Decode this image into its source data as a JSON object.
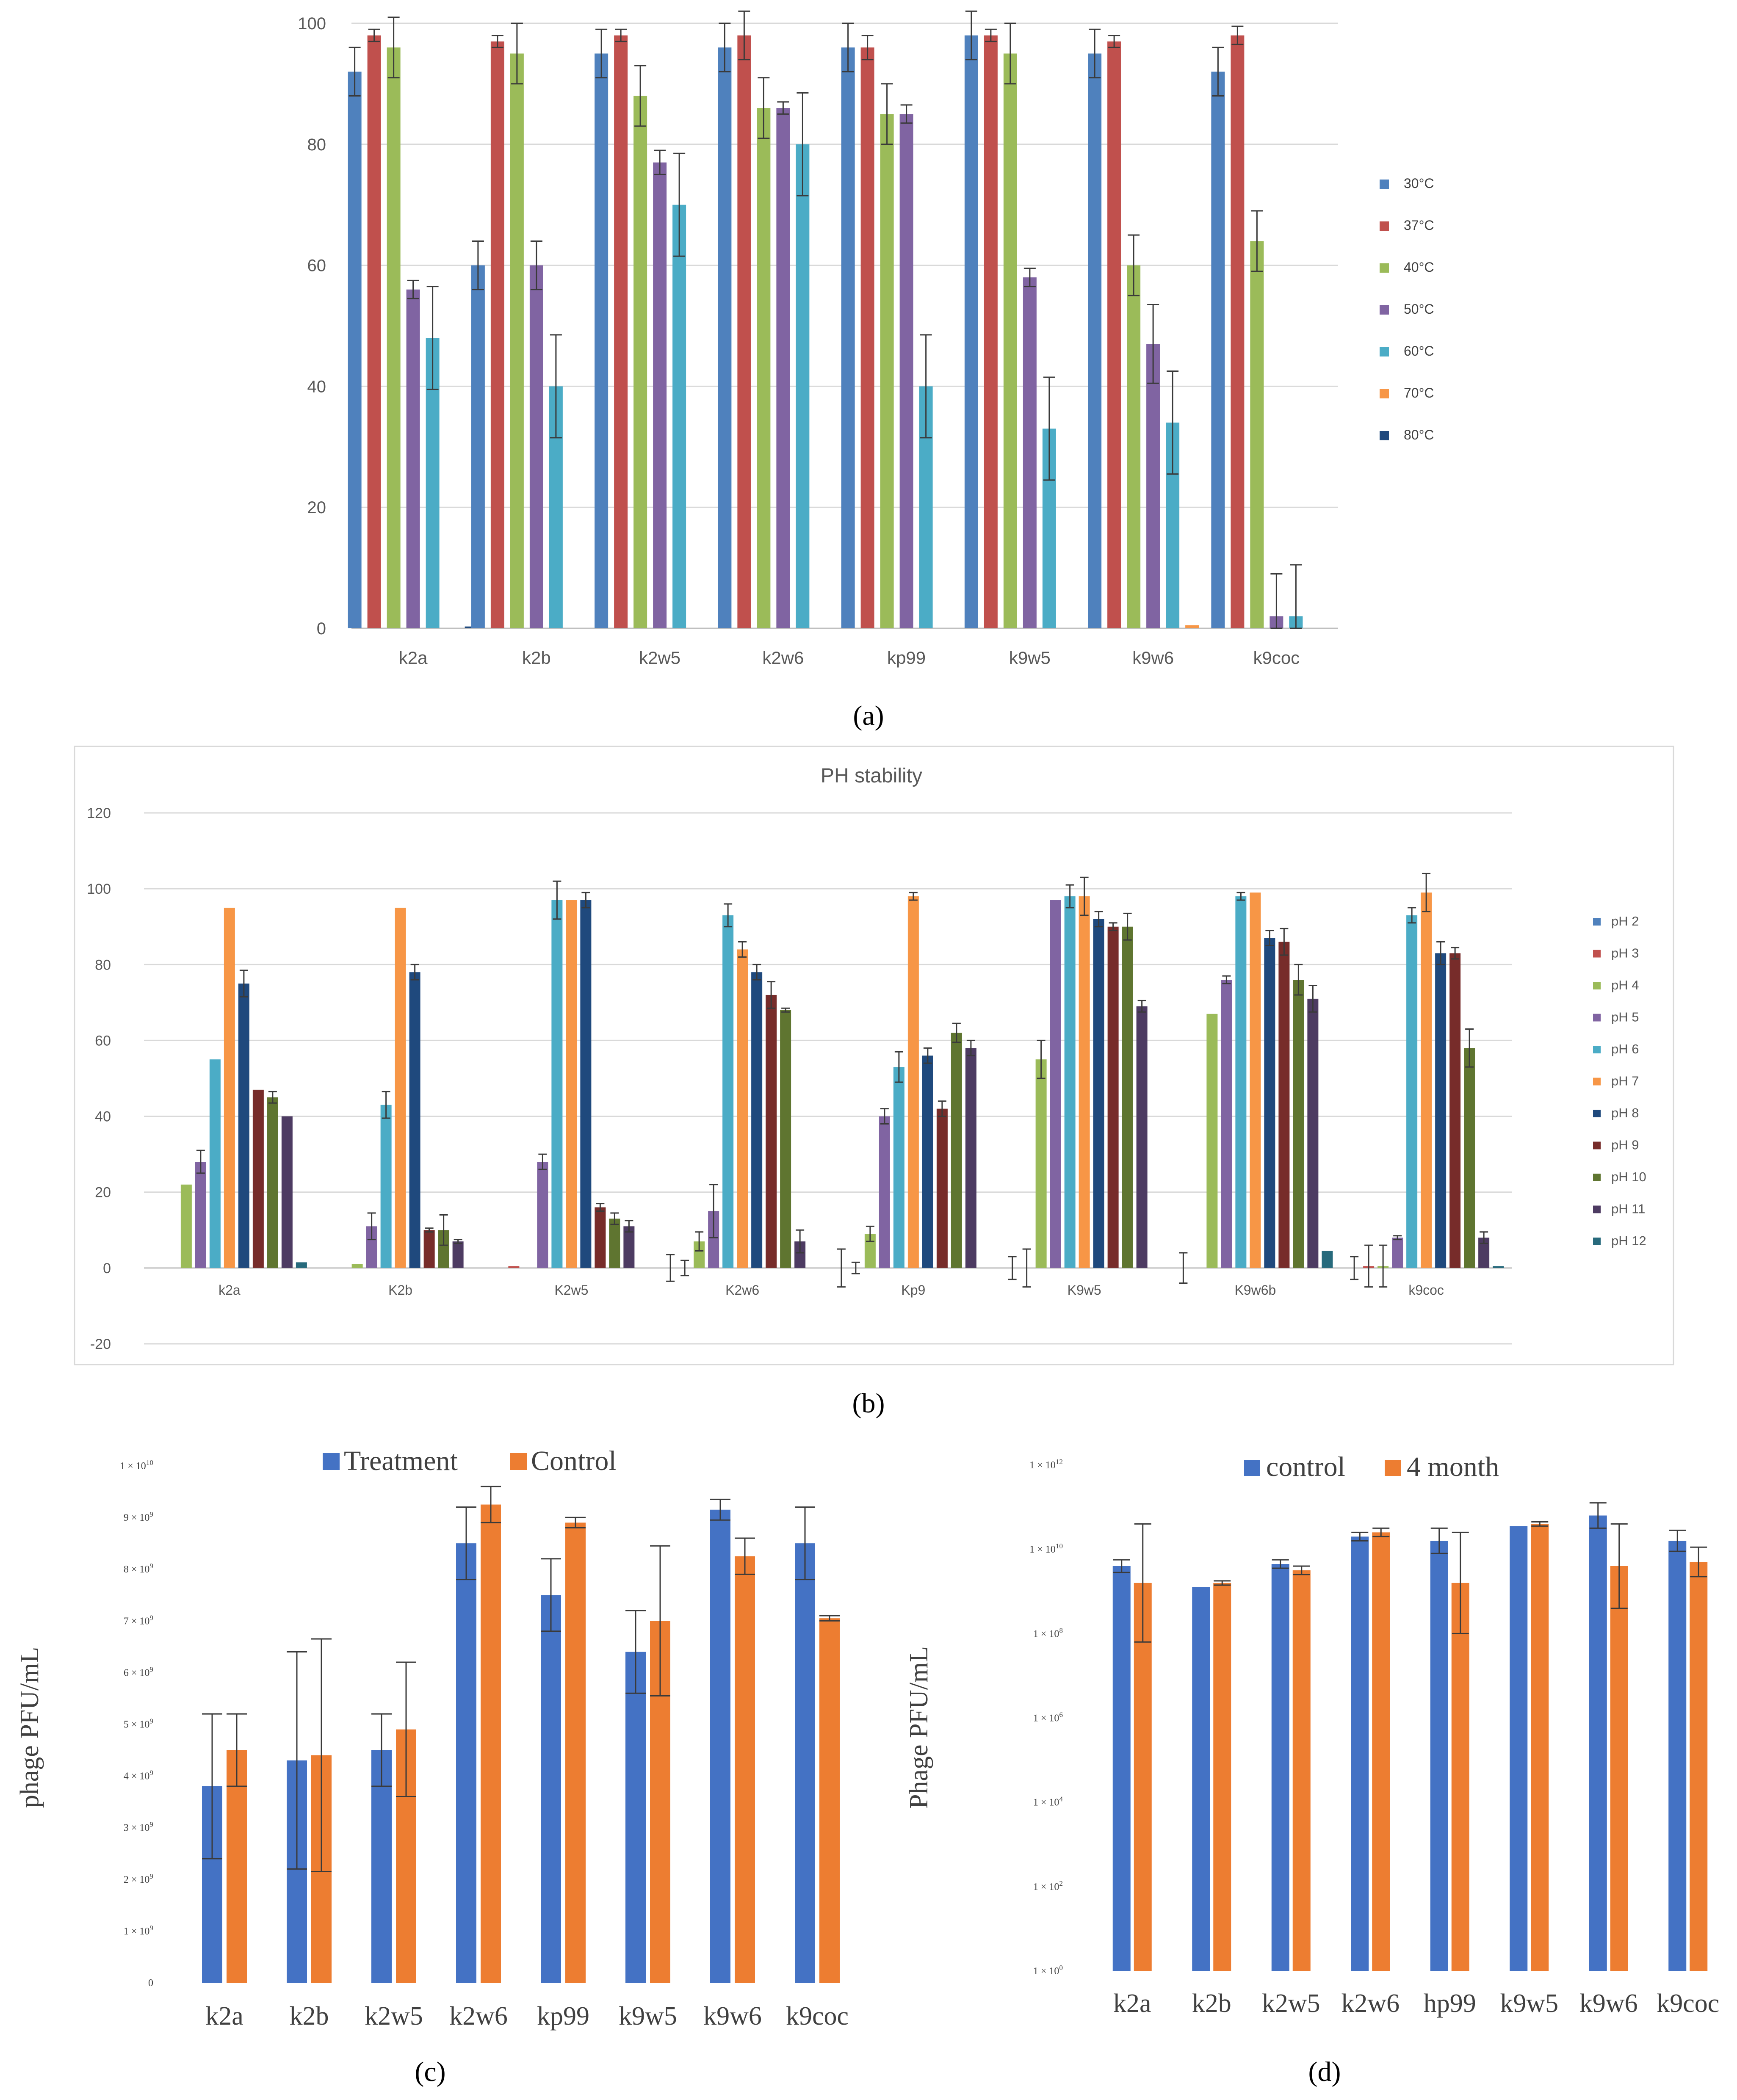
{
  "colors": {
    "temp": [
      "#4F81BD",
      "#C0504D",
      "#9BBB59",
      "#8064A2",
      "#4BACC6",
      "#F79646",
      "#1F497D"
    ],
    "ph": [
      "#4F81BD",
      "#C0504D",
      "#9BBB59",
      "#8064A2",
      "#4BACC6",
      "#F79646",
      "#1F497D",
      "#772C2A",
      "#5F7530",
      "#4D3B62",
      "#276A7C"
    ],
    "treatment": "#4472C4",
    "control": "#ED7D31"
  },
  "panel_labels": {
    "a": "(a)",
    "b": "(b)",
    "c": "(c)",
    "d": "(d)"
  },
  "chart_data": [
    {
      "id": "a",
      "type": "bar",
      "title": "",
      "xlabel": "",
      "ylabel": "",
      "ylim": [
        0,
        100
      ],
      "yticks": [
        "0",
        "20",
        "40",
        "60",
        "80",
        "100"
      ],
      "legend_position": "right",
      "categories": [
        "k2a",
        "k2b",
        "k2w5",
        "k2w6",
        "kp99",
        "k9w5",
        "k9w6",
        "k9coc"
      ],
      "series": [
        {
          "name": "30°C",
          "values": [
            92,
            60,
            95,
            96,
            96,
            98,
            95,
            92
          ],
          "errors": [
            4,
            4,
            4,
            4,
            4,
            4,
            4,
            4
          ]
        },
        {
          "name": "37°C",
          "values": [
            98,
            97,
            98,
            98,
            96,
            98,
            97,
            98
          ],
          "errors": [
            1,
            1,
            1,
            4,
            2,
            1,
            1,
            1.5
          ]
        },
        {
          "name": "40°C",
          "values": [
            96,
            95,
            88,
            86,
            85,
            95,
            60,
            64
          ],
          "errors": [
            5,
            5,
            5,
            5,
            5,
            5,
            5,
            5
          ]
        },
        {
          "name": "50°C",
          "values": [
            56,
            60,
            77,
            86,
            85,
            58,
            47,
            2
          ],
          "errors": [
            1.5,
            4,
            2,
            1,
            1.5,
            1.5,
            6.5,
            7
          ]
        },
        {
          "name": "60°C",
          "values": [
            48,
            40,
            70,
            80,
            40,
            33,
            34,
            2
          ],
          "errors": [
            8.5,
            8.5,
            8.5,
            8.5,
            8.5,
            8.5,
            8.5,
            8.5
          ]
        },
        {
          "name": "70°C",
          "values": [
            0,
            0,
            0,
            0,
            0,
            0,
            0.5,
            0
          ],
          "errors": [
            0,
            0,
            0,
            0,
            0,
            0,
            0,
            0
          ]
        },
        {
          "name": "80°C",
          "values": [
            0.3,
            0,
            0,
            0,
            0,
            0,
            0,
            0
          ],
          "errors": [
            0,
            0,
            0,
            0,
            0,
            0,
            0,
            0
          ]
        }
      ]
    },
    {
      "id": "b",
      "type": "bar",
      "title": "PH stability",
      "xlabel": "",
      "ylabel": "",
      "ylim": [
        -20,
        120
      ],
      "yticks": [
        "-20",
        "0",
        "20",
        "40",
        "60",
        "80",
        "100",
        "120"
      ],
      "legend_position": "right",
      "categories": [
        "k2a",
        "K2b",
        "K2w5",
        "K2w6",
        "Kp9",
        "K9w5",
        "K9w6b",
        "k9coc"
      ],
      "series": [
        {
          "name": "pH 2",
          "values": [
            0,
            0,
            0,
            0,
            0,
            0,
            0,
            0
          ],
          "errors": [
            0,
            0,
            0,
            3.5,
            5,
            3,
            4,
            3
          ]
        },
        {
          "name": "pH 3",
          "values": [
            0,
            0,
            0.5,
            0,
            0,
            0,
            0,
            0.5
          ],
          "errors": [
            0,
            0,
            0,
            2,
            1.5,
            5,
            0,
            5.5
          ]
        },
        {
          "name": "pH 4",
          "values": [
            22,
            1,
            0,
            7,
            9,
            55,
            67,
            0.5
          ],
          "errors": [
            0,
            0,
            0,
            2.5,
            2,
            5,
            0,
            5.5
          ]
        },
        {
          "name": "pH 5",
          "values": [
            28,
            11,
            28,
            15,
            40,
            97,
            76,
            8
          ],
          "errors": [
            3,
            3.5,
            2,
            7,
            2,
            0,
            1,
            0.5
          ]
        },
        {
          "name": "pH 6",
          "values": [
            55,
            43,
            97,
            93,
            53,
            98,
            98,
            93
          ],
          "errors": [
            0,
            3.5,
            5,
            3,
            4,
            3,
            1,
            2
          ]
        },
        {
          "name": "pH 7",
          "values": [
            95,
            95,
            97,
            84,
            98,
            98,
            99,
            99
          ],
          "errors": [
            0,
            0,
            0,
            2,
            1,
            5,
            0,
            5
          ]
        },
        {
          "name": "pH 8",
          "values": [
            75,
            78,
            97,
            78,
            56,
            92,
            87,
            83
          ],
          "errors": [
            3.5,
            2,
            2,
            2,
            2,
            2,
            2,
            3
          ]
        },
        {
          "name": "pH 9",
          "values": [
            47,
            10,
            16,
            72,
            42,
            90,
            86,
            83
          ],
          "errors": [
            0,
            0.5,
            1,
            3.5,
            2,
            1,
            3.5,
            1.5
          ]
        },
        {
          "name": "pH 10",
          "values": [
            45,
            10,
            13,
            68,
            62,
            90,
            76,
            58
          ],
          "errors": [
            1.5,
            4,
            1.5,
            0.5,
            2.5,
            3.5,
            4,
            5
          ]
        },
        {
          "name": "pH 11",
          "values": [
            40,
            7,
            11,
            7,
            58,
            69,
            71,
            8
          ],
          "errors": [
            0,
            0.5,
            1.5,
            3,
            2,
            1.5,
            3.5,
            1.5
          ]
        },
        {
          "name": "pH 12",
          "values": [
            1.5,
            0,
            0,
            0,
            0,
            0,
            4.5,
            0.5
          ],
          "errors": [
            0,
            0,
            0,
            0,
            0,
            0,
            0,
            0
          ]
        }
      ]
    },
    {
      "id": "c",
      "type": "bar",
      "title": "",
      "xlabel": "",
      "ylabel": "phage PFU/mL",
      "ylim": [
        0,
        10
      ],
      "value_unit": "x 10^9 PFU/mL",
      "yticks": [
        "0",
        "1 × 10^9",
        "2 × 10^9",
        "3 × 10^9",
        "4 × 10^9",
        "5 × 10^9",
        "6 × 10^9",
        "7 × 10^9",
        "8 × 10^9",
        "9 × 10^9",
        "1 × 10^10"
      ],
      "legend_position": "top",
      "categories": [
        "k2a",
        "k2b",
        "k2w5",
        "k2w6",
        "kp99",
        "k9w5",
        "k9w6",
        "k9coc"
      ],
      "series": [
        {
          "name": "Treatment",
          "values": [
            3.8,
            4.3,
            4.5,
            8.5,
            7.5,
            6.4,
            9.15,
            8.5
          ],
          "errors": [
            1.4,
            2.1,
            0.7,
            0.7,
            0.7,
            0.8,
            0.2,
            0.7
          ]
        },
        {
          "name": "Control",
          "values": [
            4.5,
            4.4,
            4.9,
            9.25,
            8.9,
            7.0,
            8.25,
            7.05
          ],
          "errors": [
            0.7,
            2.25,
            1.3,
            0.35,
            0.1,
            1.45,
            0.35,
            0.05
          ]
        }
      ]
    },
    {
      "id": "d",
      "type": "bar",
      "title": "",
      "xlabel": "",
      "ylabel": "Phage PFU/mL",
      "yscale": "log10",
      "ylim": [
        0,
        12
      ],
      "value_unit": "log10 PFU/mL",
      "yticks": [
        "1 × 10^0",
        "1 × 10^2",
        "1 × 10^4",
        "1 × 10^6",
        "1 × 10^8",
        "1 × 10^10",
        "1 × 10^12"
      ],
      "legend_position": "top",
      "categories": [
        "k2a",
        "k2b",
        "k2w5",
        "k2w6",
        "hp99",
        "k9w5",
        "k9w6",
        "k9coc"
      ],
      "series": [
        {
          "name": "control",
          "values": [
            9.6,
            9.1,
            9.65,
            10.3,
            10.2,
            10.55,
            10.8,
            10.2
          ],
          "errors": [
            0.15,
            0,
            0.1,
            0.1,
            0.3,
            0,
            0.3,
            0.25
          ]
        },
        {
          "name": "4 month",
          "values": [
            9.2,
            9.2,
            9.5,
            10.4,
            9.2,
            10.6,
            9.6,
            9.7
          ],
          "errors": [
            1.4,
            0.05,
            0.1,
            0.1,
            1.2,
            0.05,
            1.0,
            0.35
          ]
        }
      ]
    }
  ]
}
